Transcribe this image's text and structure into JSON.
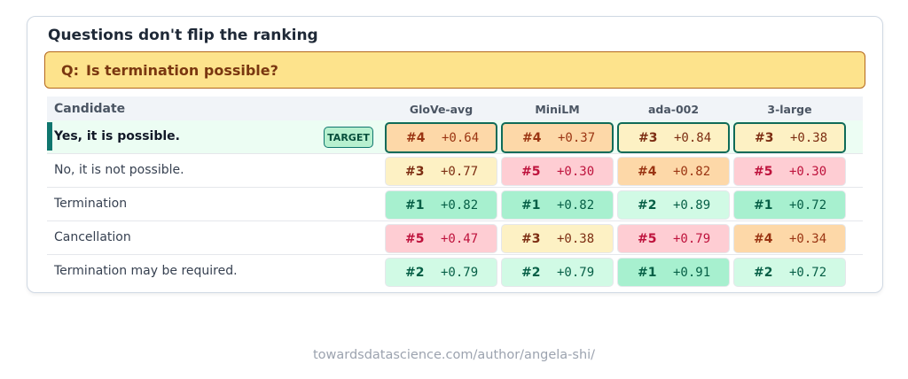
{
  "title": "Questions don't flip the ranking",
  "question": {
    "prefix": "Q:",
    "text": "Is termination possible?"
  },
  "columns": {
    "candidate": "Candidate",
    "models": [
      "GloVe-avg",
      "MiniLM",
      "ada-002",
      "3-large"
    ]
  },
  "target_badge": "TARGET",
  "colors": {
    "rank1": "#a7f0cf",
    "rank2": "#d1fae5",
    "rank3": "#fdf1c4",
    "rank4": "#fdd8a8",
    "rank5": "#fecdd3",
    "target_accent": "#0f766e"
  },
  "rows": [
    {
      "candidate": "Yes, it is possible.",
      "target": true,
      "cells": [
        {
          "rank": "#4",
          "score": "+0.64"
        },
        {
          "rank": "#4",
          "score": "+0.37"
        },
        {
          "rank": "#3",
          "score": "+0.84"
        },
        {
          "rank": "#3",
          "score": "+0.38"
        }
      ]
    },
    {
      "candidate": "No, it is not possible.",
      "target": false,
      "cells": [
        {
          "rank": "#3",
          "score": "+0.77"
        },
        {
          "rank": "#5",
          "score": "+0.30"
        },
        {
          "rank": "#4",
          "score": "+0.82"
        },
        {
          "rank": "#5",
          "score": "+0.30"
        }
      ]
    },
    {
      "candidate": "Termination",
      "target": false,
      "cells": [
        {
          "rank": "#1",
          "score": "+0.82"
        },
        {
          "rank": "#1",
          "score": "+0.82"
        },
        {
          "rank": "#2",
          "score": "+0.89"
        },
        {
          "rank": "#1",
          "score": "+0.72"
        }
      ]
    },
    {
      "candidate": "Cancellation",
      "target": false,
      "cells": [
        {
          "rank": "#5",
          "score": "+0.47"
        },
        {
          "rank": "#3",
          "score": "+0.38"
        },
        {
          "rank": "#5",
          "score": "+0.79"
        },
        {
          "rank": "#4",
          "score": "+0.34"
        }
      ]
    },
    {
      "candidate": "Termination may be required.",
      "target": false,
      "cells": [
        {
          "rank": "#2",
          "score": "+0.79"
        },
        {
          "rank": "#2",
          "score": "+0.79"
        },
        {
          "rank": "#1",
          "score": "+0.91"
        },
        {
          "rank": "#2",
          "score": "+0.72"
        }
      ]
    }
  ],
  "footer": "towardsdatascience.com/author/angela-shi/"
}
